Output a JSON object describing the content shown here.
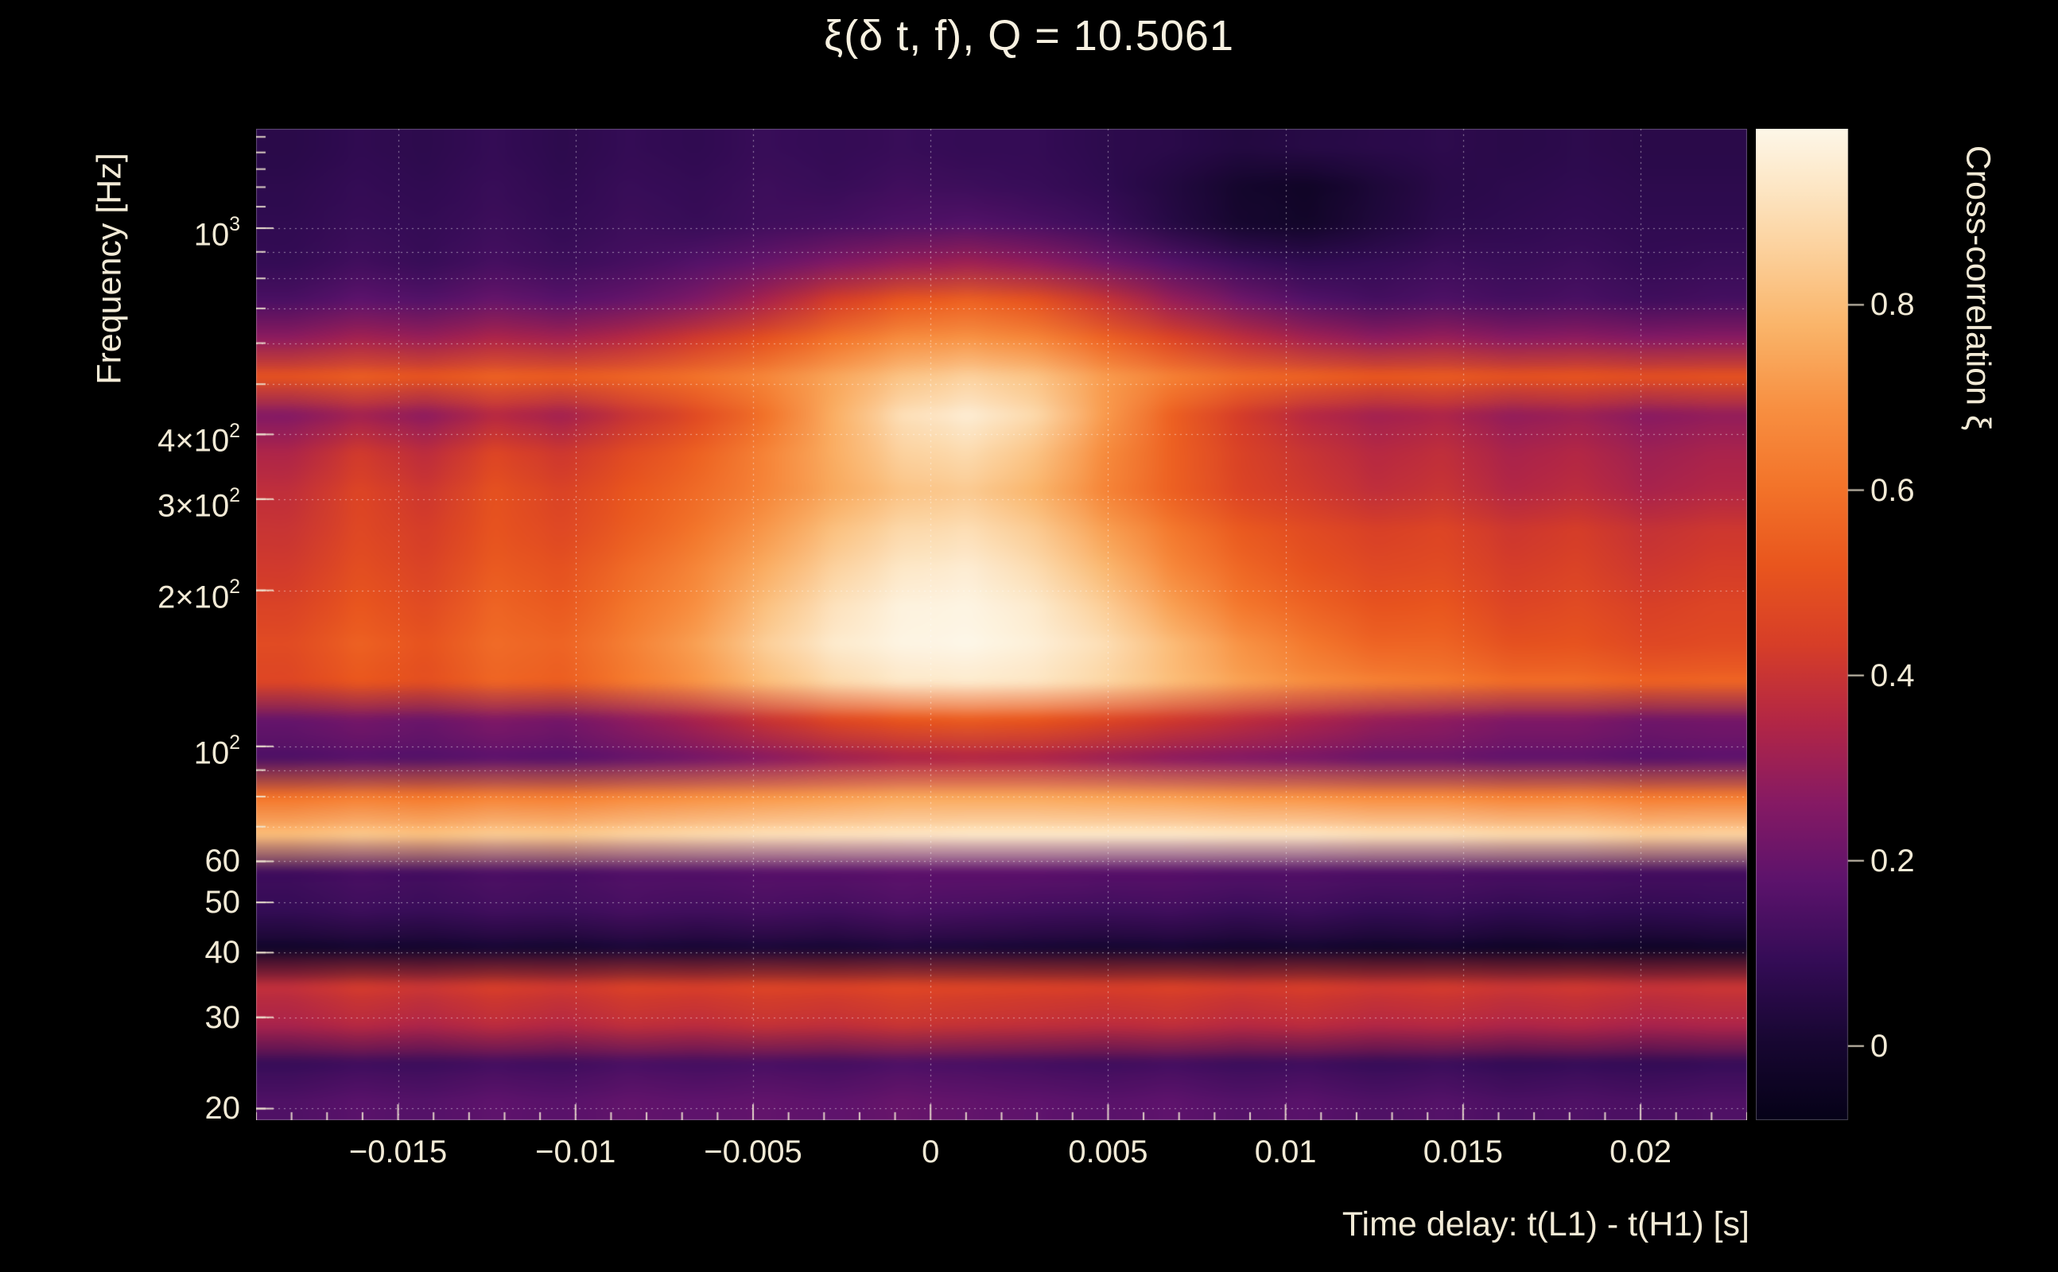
{
  "title": "ξ(δ t, f), Q = 10.5061",
  "colors": {
    "background": "#000000",
    "text": "#f2ead6",
    "title_text": "#f7f1e1",
    "grid": "rgba(255,255,255,0.5)",
    "frame": "rgba(200,200,200,0.35)",
    "tick_mark": "rgba(240,230,210,0.9)"
  },
  "chart_data": {
    "type": "heatmap",
    "title": "ξ(δ t, f), Q = 10.5061",
    "xlabel": "Time delay: t(L1) - t(H1) [s]",
    "ylabel": "Frequency [Hz]",
    "colorbar_label": "Cross-correlation ξ",
    "x_range": [
      -0.019,
      0.023
    ],
    "y_range_hz": [
      19,
      1555
    ],
    "y_scale": "log",
    "color_range": [
      -0.08,
      0.99
    ],
    "x_ticks": [
      {
        "value": -0.015,
        "label": "−0.015"
      },
      {
        "value": -0.01,
        "label": "−0.01"
      },
      {
        "value": -0.005,
        "label": "−0.005"
      },
      {
        "value": 0,
        "label": "0"
      },
      {
        "value": 0.005,
        "label": "0.005"
      },
      {
        "value": 0.01,
        "label": "0.01"
      },
      {
        "value": 0.015,
        "label": "0.015"
      },
      {
        "value": 0.02,
        "label": "0.02"
      }
    ],
    "y_ticks": [
      {
        "value": 1000,
        "text": "10",
        "sup": "3"
      },
      {
        "value": 400,
        "text": "4×10",
        "sup": "2"
      },
      {
        "value": 300,
        "text": "3×10",
        "sup": "2"
      },
      {
        "value": 200,
        "text": "2×10",
        "sup": "2"
      },
      {
        "value": 100,
        "text": "10",
        "sup": "2"
      },
      {
        "value": 60,
        "text": "60"
      },
      {
        "value": 50,
        "text": "50"
      },
      {
        "value": 40,
        "text": "40"
      },
      {
        "value": 30,
        "text": "30"
      },
      {
        "value": 20,
        "text": "20"
      }
    ],
    "colorbar_ticks": [
      {
        "value": 0.8,
        "label": "0.8"
      },
      {
        "value": 0.6,
        "label": "0.6"
      },
      {
        "value": 0.4,
        "label": "0.4"
      },
      {
        "value": 0.2,
        "label": "0.2"
      },
      {
        "value": 0,
        "label": "0"
      }
    ],
    "grid_x_values": [
      -0.015,
      -0.01,
      -0.005,
      0,
      0.005,
      0.01,
      0.015,
      0.02
    ],
    "grid_y_values_hz": [
      20,
      30,
      40,
      50,
      60,
      70,
      80,
      90,
      100,
      200,
      300,
      400,
      500,
      600,
      700,
      800,
      900,
      1000
    ],
    "extra_minor_y_ticks_hz": [
      1100,
      1200,
      1300,
      1400,
      1500
    ],
    "x_minor_step": 0.001,
    "colormap_stops": [
      [
        0.0,
        6,
        2,
        24
      ],
      [
        0.08,
        24,
        7,
        50
      ],
      [
        0.16,
        52,
        12,
        86
      ],
      [
        0.24,
        92,
        19,
        108
      ],
      [
        0.32,
        134,
        26,
        100
      ],
      [
        0.4,
        178,
        38,
        70
      ],
      [
        0.48,
        215,
        62,
        40
      ],
      [
        0.56,
        233,
        86,
        30
      ],
      [
        0.64,
        243,
        116,
        42
      ],
      [
        0.72,
        248,
        144,
        66
      ],
      [
        0.8,
        250,
        180,
        105
      ],
      [
        0.88,
        252,
        210,
        158
      ],
      [
        0.94,
        253,
        230,
        196
      ],
      [
        1.0,
        253,
        247,
        232
      ]
    ],
    "row_frequencies_hz": [
      1294,
      1093,
      923,
      780,
      659,
      556,
      470,
      397,
      335,
      283,
      239,
      202,
      171,
      144,
      122,
      103,
      87,
      73,
      62,
      52,
      44,
      37,
      31.5,
      26.6,
      22.5,
      19
    ],
    "x_column_centers_s": [
      -0.018,
      -0.0161,
      -0.0142,
      -0.0123,
      -0.0104,
      -0.0085,
      -0.0066,
      -0.0046,
      -0.0027,
      -0.0008,
      0.0011,
      0.003,
      0.0049,
      0.0068,
      0.0088,
      0.0107,
      0.0126,
      0.0145,
      0.0164,
      0.0183,
      0.0202,
      0.0221
    ],
    "values": [
      [
        0.06,
        0.08,
        0.07,
        0.09,
        0.07,
        0.09,
        0.08,
        0.1,
        0.09,
        0.1,
        0.09,
        0.09,
        0.07,
        0.06,
        0.04,
        0.05,
        0.06,
        0.07,
        0.06,
        0.07,
        0.06,
        0.06
      ],
      [
        0.07,
        0.09,
        0.08,
        0.1,
        0.08,
        0.1,
        0.09,
        0.11,
        0.1,
        0.12,
        0.11,
        0.1,
        0.08,
        0.04,
        -0.01,
        -0.03,
        0.02,
        0.06,
        0.07,
        0.08,
        0.07,
        0.07
      ],
      [
        0.08,
        0.1,
        0.09,
        0.11,
        0.09,
        0.11,
        0.1,
        0.12,
        0.13,
        0.15,
        0.16,
        0.14,
        0.11,
        0.05,
        0.0,
        -0.02,
        0.03,
        0.07,
        0.08,
        0.09,
        0.08,
        0.08
      ],
      [
        0.09,
        0.12,
        0.1,
        0.13,
        0.11,
        0.13,
        0.16,
        0.2,
        0.25,
        0.29,
        0.31,
        0.28,
        0.22,
        0.16,
        0.11,
        0.08,
        0.09,
        0.11,
        0.1,
        0.11,
        0.09,
        0.1
      ],
      [
        0.14,
        0.18,
        0.16,
        0.2,
        0.17,
        0.2,
        0.25,
        0.33,
        0.43,
        0.52,
        0.55,
        0.5,
        0.4,
        0.3,
        0.22,
        0.16,
        0.13,
        0.15,
        0.13,
        0.14,
        0.12,
        0.13
      ],
      [
        0.28,
        0.32,
        0.3,
        0.34,
        0.32,
        0.36,
        0.42,
        0.5,
        0.6,
        0.68,
        0.7,
        0.66,
        0.56,
        0.46,
        0.38,
        0.32,
        0.28,
        0.3,
        0.27,
        0.28,
        0.26,
        0.27
      ],
      [
        0.5,
        0.54,
        0.51,
        0.55,
        0.53,
        0.56,
        0.6,
        0.66,
        0.74,
        0.82,
        0.86,
        0.82,
        0.72,
        0.64,
        0.58,
        0.55,
        0.52,
        0.53,
        0.5,
        0.51,
        0.49,
        0.5
      ],
      [
        0.26,
        0.32,
        0.28,
        0.36,
        0.32,
        0.4,
        0.48,
        0.6,
        0.76,
        0.9,
        0.95,
        0.88,
        0.72,
        0.55,
        0.43,
        0.36,
        0.32,
        0.34,
        0.29,
        0.31,
        0.27,
        0.29
      ],
      [
        0.34,
        0.42,
        0.37,
        0.46,
        0.41,
        0.48,
        0.55,
        0.65,
        0.76,
        0.86,
        0.89,
        0.82,
        0.68,
        0.55,
        0.45,
        0.4,
        0.36,
        0.38,
        0.33,
        0.35,
        0.31,
        0.33
      ],
      [
        0.38,
        0.46,
        0.41,
        0.5,
        0.45,
        0.52,
        0.58,
        0.66,
        0.75,
        0.82,
        0.84,
        0.78,
        0.66,
        0.55,
        0.46,
        0.42,
        0.38,
        0.4,
        0.35,
        0.37,
        0.33,
        0.35
      ],
      [
        0.4,
        0.47,
        0.43,
        0.51,
        0.47,
        0.54,
        0.61,
        0.71,
        0.81,
        0.88,
        0.9,
        0.84,
        0.73,
        0.62,
        0.53,
        0.48,
        0.44,
        0.46,
        0.41,
        0.43,
        0.39,
        0.41
      ],
      [
        0.42,
        0.49,
        0.45,
        0.53,
        0.5,
        0.58,
        0.66,
        0.76,
        0.86,
        0.93,
        0.95,
        0.89,
        0.79,
        0.67,
        0.57,
        0.51,
        0.47,
        0.48,
        0.43,
        0.45,
        0.41,
        0.43
      ],
      [
        0.45,
        0.52,
        0.48,
        0.56,
        0.53,
        0.61,
        0.69,
        0.81,
        0.91,
        0.97,
        0.98,
        0.94,
        0.85,
        0.73,
        0.62,
        0.56,
        0.51,
        0.52,
        0.46,
        0.48,
        0.44,
        0.46
      ],
      [
        0.48,
        0.55,
        0.51,
        0.58,
        0.56,
        0.64,
        0.73,
        0.85,
        0.94,
        0.98,
        0.99,
        0.96,
        0.9,
        0.8,
        0.7,
        0.62,
        0.56,
        0.56,
        0.5,
        0.51,
        0.47,
        0.48
      ],
      [
        0.46,
        0.52,
        0.49,
        0.56,
        0.54,
        0.62,
        0.7,
        0.8,
        0.88,
        0.93,
        0.94,
        0.92,
        0.87,
        0.8,
        0.73,
        0.68,
        0.64,
        0.62,
        0.58,
        0.58,
        0.55,
        0.56
      ],
      [
        0.2,
        0.23,
        0.21,
        0.25,
        0.23,
        0.28,
        0.33,
        0.4,
        0.47,
        0.52,
        0.54,
        0.52,
        0.47,
        0.42,
        0.38,
        0.34,
        0.3,
        0.28,
        0.25,
        0.25,
        0.22,
        0.23
      ],
      [
        0.15,
        0.17,
        0.16,
        0.18,
        0.17,
        0.2,
        0.23,
        0.27,
        0.31,
        0.34,
        0.35,
        0.34,
        0.31,
        0.28,
        0.26,
        0.24,
        0.21,
        0.21,
        0.19,
        0.19,
        0.17,
        0.18
      ],
      [
        0.6,
        0.63,
        0.61,
        0.64,
        0.63,
        0.66,
        0.68,
        0.7,
        0.72,
        0.74,
        0.74,
        0.74,
        0.73,
        0.72,
        0.7,
        0.69,
        0.67,
        0.67,
        0.64,
        0.65,
        0.62,
        0.63
      ],
      [
        0.8,
        0.83,
        0.81,
        0.84,
        0.83,
        0.86,
        0.88,
        0.9,
        0.91,
        0.92,
        0.93,
        0.93,
        0.93,
        0.93,
        0.92,
        0.92,
        0.9,
        0.9,
        0.88,
        0.88,
        0.85,
        0.86
      ],
      [
        0.12,
        0.14,
        0.13,
        0.15,
        0.14,
        0.16,
        0.16,
        0.17,
        0.17,
        0.18,
        0.18,
        0.18,
        0.17,
        0.17,
        0.16,
        0.16,
        0.15,
        0.15,
        0.14,
        0.14,
        0.13,
        0.13
      ],
      [
        0.09,
        0.11,
        0.1,
        0.12,
        0.11,
        0.13,
        0.12,
        0.13,
        0.12,
        0.14,
        0.13,
        0.12,
        0.11,
        0.12,
        0.1,
        0.11,
        0.09,
        0.1,
        0.08,
        0.09,
        0.08,
        0.09
      ],
      [
        -0.02,
        0.0,
        -0.01,
        0.01,
        0.0,
        0.02,
        0.01,
        0.02,
        0.01,
        0.03,
        0.02,
        0.01,
        0.0,
        0.01,
        -0.01,
        0.0,
        -0.02,
        -0.01,
        -0.03,
        -0.02,
        -0.03,
        -0.02
      ],
      [
        0.38,
        0.42,
        0.4,
        0.43,
        0.41,
        0.44,
        0.43,
        0.45,
        0.44,
        0.46,
        0.45,
        0.44,
        0.43,
        0.44,
        0.42,
        0.43,
        0.41,
        0.42,
        0.4,
        0.41,
        0.39,
        0.4
      ],
      [
        0.33,
        0.36,
        0.34,
        0.37,
        0.35,
        0.38,
        0.37,
        0.39,
        0.38,
        0.4,
        0.39,
        0.38,
        0.37,
        0.38,
        0.36,
        0.37,
        0.35,
        0.36,
        0.34,
        0.35,
        0.33,
        0.34
      ],
      [
        0.1,
        0.12,
        0.11,
        0.13,
        0.12,
        0.14,
        0.13,
        0.14,
        0.13,
        0.15,
        0.14,
        0.13,
        0.12,
        0.13,
        0.11,
        0.12,
        0.1,
        0.11,
        0.09,
        0.1,
        0.09,
        0.1
      ],
      [
        0.15,
        0.17,
        0.16,
        0.18,
        0.17,
        0.19,
        0.18,
        0.19,
        0.18,
        0.2,
        0.19,
        0.18,
        0.17,
        0.18,
        0.16,
        0.17,
        0.15,
        0.16,
        0.14,
        0.15,
        0.14,
        0.15
      ]
    ]
  }
}
